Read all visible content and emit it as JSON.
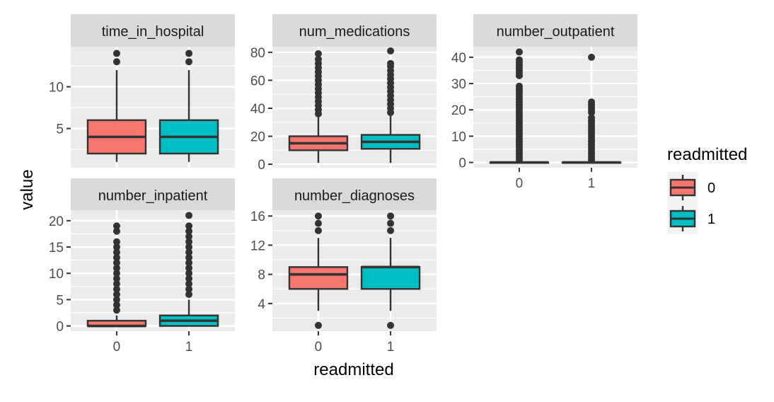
{
  "chart_data": {
    "type": "boxplot",
    "xlabel": "readmitted",
    "ylabel": "value",
    "categories": [
      "0",
      "1"
    ],
    "legend": {
      "title": "readmitted",
      "position": "right",
      "entries": [
        {
          "label": "0",
          "color": "#F8766D"
        },
        {
          "label": "1",
          "color": "#00BFC4"
        }
      ]
    },
    "colors": {
      "panel_bg": "#EBEBEB",
      "strip_bg": "#D9D9D9",
      "grid": "#FFFFFF",
      "box_outline": "#333333",
      "text": "#4D4D4D"
    },
    "panels": [
      {
        "title": "time_in_hospital",
        "ylim": [
          0.3,
          14.8
        ],
        "yticks": [
          5,
          10
        ],
        "yticklabels": [
          "5",
          "10"
        ],
        "boxes": [
          {
            "category": "0",
            "lower_whisker": 1,
            "q1": 2,
            "median": 4,
            "q3": 6,
            "upper_whisker": 12,
            "outliers": [
              13,
              14
            ]
          },
          {
            "category": "1",
            "lower_whisker": 1,
            "q1": 2,
            "median": 4,
            "q3": 6,
            "upper_whisker": 12,
            "outliers": [
              13,
              14
            ]
          }
        ]
      },
      {
        "title": "num_medications",
        "ylim": [
          -2.5,
          84
        ],
        "yticks": [
          0,
          20,
          40,
          60,
          80
        ],
        "yticklabels": [
          "0",
          "20",
          "40",
          "60",
          "80"
        ],
        "boxes": [
          {
            "category": "0",
            "lower_whisker": 1,
            "q1": 10,
            "median": 15,
            "q3": 20,
            "upper_whisker": 35,
            "outliers": [
              36,
              39,
              42,
              45,
              48,
              51,
              54,
              57,
              60,
              63,
              66,
              69,
              72,
              75,
              79
            ]
          },
          {
            "category": "1",
            "lower_whisker": 1,
            "q1": 11,
            "median": 16,
            "q3": 21,
            "upper_whisker": 36,
            "outliers": [
              37,
              40,
              43,
              46,
              49,
              52,
              55,
              58,
              61,
              64,
              67,
              70,
              72,
              81
            ]
          }
        ]
      },
      {
        "title": "number_outpatient",
        "ylim": [
          -2,
          44
        ],
        "yticks": [
          0,
          10,
          20,
          30,
          40
        ],
        "yticklabels": [
          "0",
          "10",
          "20",
          "30",
          "40"
        ],
        "boxes": [
          {
            "category": "0",
            "lower_whisker": 0,
            "q1": 0,
            "median": 0,
            "q3": 0,
            "upper_whisker": 0,
            "outliers": [
              1,
              2,
              3,
              4,
              5,
              6,
              7,
              8,
              9,
              10,
              11,
              12,
              13,
              14,
              15,
              16,
              17,
              18,
              19,
              20,
              21,
              22,
              23,
              24,
              25,
              26,
              27,
              28,
              29,
              33,
              34,
              35,
              36,
              37,
              38,
              39,
              42
            ]
          },
          {
            "category": "1",
            "lower_whisker": 0,
            "q1": 0,
            "median": 0,
            "q3": 0,
            "upper_whisker": 0,
            "outliers": [
              1,
              2,
              3,
              4,
              5,
              6,
              7,
              8,
              9,
              10,
              11,
              12,
              13,
              14,
              15,
              16,
              17,
              19,
              20,
              21,
              22,
              23,
              40
            ]
          }
        ]
      },
      {
        "title": "number_inpatient",
        "ylim": [
          -1,
          22
        ],
        "yticks": [
          0,
          5,
          10,
          15,
          20
        ],
        "yticklabels": [
          "0",
          "5",
          "10",
          "15",
          "20"
        ],
        "boxes": [
          {
            "category": "0",
            "lower_whisker": 0,
            "q1": 0,
            "median": 0,
            "q3": 1,
            "upper_whisker": 2,
            "outliers": [
              3,
              4,
              5,
              6,
              7,
              8,
              9,
              10,
              11,
              12,
              13,
              14,
              15,
              16,
              18,
              19
            ]
          },
          {
            "category": "1",
            "lower_whisker": 0,
            "q1": 0,
            "median": 1,
            "q3": 2,
            "upper_whisker": 5,
            "outliers": [
              6,
              7,
              8,
              9,
              10,
              11,
              12,
              13,
              14,
              15,
              16,
              17,
              18,
              19,
              21
            ]
          }
        ]
      },
      {
        "title": "number_diagnoses",
        "ylim": [
          0.2,
          16.8
        ],
        "yticks": [
          4,
          8,
          12,
          16
        ],
        "yticklabels": [
          "4",
          "8",
          "12",
          "16"
        ],
        "boxes": [
          {
            "category": "0",
            "lower_whisker": 3,
            "q1": 6,
            "median": 8,
            "q3": 9,
            "upper_whisker": 13,
            "outliers": [
              1,
              14,
              15,
              16
            ]
          },
          {
            "category": "1",
            "lower_whisker": 3,
            "q1": 6,
            "median": 9,
            "q3": 9,
            "upper_whisker": 13,
            "outliers": [
              1,
              14,
              15,
              16
            ]
          }
        ]
      }
    ]
  }
}
